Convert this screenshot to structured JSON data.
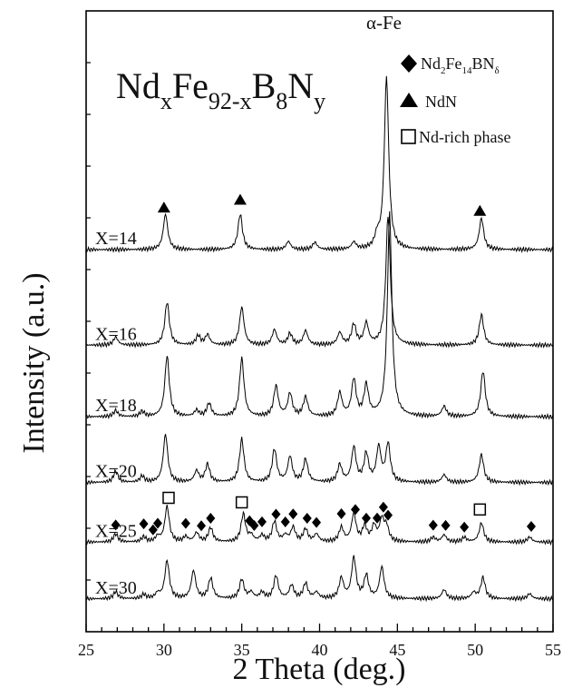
{
  "chart_data": {
    "type": "line",
    "title_parts": [
      "Nd",
      "x",
      "Fe",
      "92-x",
      "B",
      "8",
      "N",
      "y"
    ],
    "xlabel": "2 Theta (deg.)",
    "ylabel": "Intensity (a.u.)",
    "xlim": [
      25,
      55
    ],
    "x_ticks": [
      25,
      30,
      35,
      40,
      45,
      50,
      55
    ],
    "grid": false,
    "legend_position": "top-right",
    "legend": {
      "diamond": {
        "base": "Nd",
        "sub1": "2",
        "mid": "Fe",
        "sub2": "14",
        "end": "BN",
        "sub3": "δ"
      },
      "triangle": "NdN",
      "square": "Nd-rich phase"
    },
    "peak_label_afe": "α-Fe",
    "series": [
      {
        "name": "X=14",
        "baseline": 0.6,
        "peaks": [
          [
            30.1,
            0.7
          ],
          [
            34.9,
            0.7
          ],
          [
            38.0,
            0.16
          ],
          [
            39.7,
            0.14
          ],
          [
            42.2,
            0.14
          ],
          [
            43.7,
            0.22
          ],
          [
            44.3,
            3.4
          ],
          [
            50.4,
            0.62
          ]
        ]
      },
      {
        "name": "X=16",
        "baseline": 0.44,
        "peaks": [
          [
            26.9,
            0.16
          ],
          [
            30.2,
            0.85
          ],
          [
            32.2,
            0.18
          ],
          [
            32.8,
            0.2
          ],
          [
            35.0,
            0.75
          ],
          [
            37.1,
            0.3
          ],
          [
            38.1,
            0.22
          ],
          [
            39.1,
            0.28
          ],
          [
            41.3,
            0.24
          ],
          [
            42.2,
            0.4
          ],
          [
            43.0,
            0.42
          ],
          [
            44.4,
            2.55
          ],
          [
            50.4,
            0.6
          ]
        ]
      },
      {
        "name": "X=18",
        "baseline": 0.32,
        "peaks": [
          [
            26.9,
            0.12
          ],
          [
            28.6,
            0.1
          ],
          [
            30.2,
            1.2
          ],
          [
            32.1,
            0.12
          ],
          [
            32.9,
            0.26
          ],
          [
            35.0,
            1.15
          ],
          [
            37.2,
            0.6
          ],
          [
            38.1,
            0.45
          ],
          [
            39.1,
            0.38
          ],
          [
            41.3,
            0.46
          ],
          [
            42.2,
            0.72
          ],
          [
            43.0,
            0.6
          ],
          [
            44.5,
            4.0
          ],
          [
            48.0,
            0.2
          ],
          [
            50.5,
            0.9
          ]
        ]
      },
      {
        "name": "X=20",
        "baseline": 0.21,
        "peaks": [
          [
            26.9,
            0.22
          ],
          [
            28.6,
            0.12
          ],
          [
            30.1,
            0.95
          ],
          [
            32.1,
            0.22
          ],
          [
            32.8,
            0.35
          ],
          [
            35.0,
            0.85
          ],
          [
            37.1,
            0.65
          ],
          [
            38.1,
            0.5
          ],
          [
            39.1,
            0.45
          ],
          [
            41.3,
            0.34
          ],
          [
            42.2,
            0.68
          ],
          [
            43.0,
            0.55
          ],
          [
            43.8,
            0.68
          ],
          [
            44.4,
            0.75
          ],
          [
            48.0,
            0.15
          ],
          [
            50.4,
            0.55
          ]
        ]
      },
      {
        "name": "X=25",
        "baseline": 0.11,
        "peaks": [
          [
            26.9,
            0.16
          ],
          [
            28.7,
            0.1
          ],
          [
            29.6,
            0.1
          ],
          [
            30.2,
            0.7
          ],
          [
            31.4,
            0.1
          ],
          [
            32.1,
            0.18
          ],
          [
            33.0,
            0.28
          ],
          [
            35.1,
            0.55
          ],
          [
            35.6,
            0.12
          ],
          [
            36.3,
            0.12
          ],
          [
            37.1,
            0.4
          ],
          [
            37.8,
            0.12
          ],
          [
            38.3,
            0.28
          ],
          [
            39.1,
            0.25
          ],
          [
            39.8,
            0.15
          ],
          [
            41.4,
            0.28
          ],
          [
            42.2,
            0.55
          ],
          [
            42.9,
            0.3
          ],
          [
            43.5,
            0.3
          ],
          [
            44.0,
            0.42
          ],
          [
            44.3,
            0.28
          ],
          [
            47.3,
            0.09
          ],
          [
            48.0,
            0.14
          ],
          [
            49.3,
            0.09
          ],
          [
            50.4,
            0.38
          ],
          [
            53.5,
            0.1
          ]
        ]
      },
      {
        "name": "X=30",
        "baseline": 0.015,
        "peaks": [
          [
            26.9,
            0.14
          ],
          [
            28.7,
            0.08
          ],
          [
            29.6,
            0.1
          ],
          [
            30.2,
            0.75
          ],
          [
            31.9,
            0.55
          ],
          [
            33.0,
            0.4
          ],
          [
            35.0,
            0.38
          ],
          [
            35.6,
            0.12
          ],
          [
            36.3,
            0.12
          ],
          [
            37.2,
            0.45
          ],
          [
            38.2,
            0.26
          ],
          [
            39.1,
            0.3
          ],
          [
            39.8,
            0.12
          ],
          [
            41.4,
            0.4
          ],
          [
            42.2,
            0.8
          ],
          [
            43.0,
            0.45
          ],
          [
            44.0,
            0.62
          ],
          [
            48.0,
            0.18
          ],
          [
            49.9,
            0.12
          ],
          [
            50.5,
            0.42
          ],
          [
            53.5,
            0.1
          ]
        ]
      }
    ],
    "markers": {
      "triangles": [
        30.0,
        34.9,
        50.3
      ],
      "squares": [
        30.3,
        35.0,
        50.3
      ],
      "diamonds": [
        26.9,
        28.7,
        29.3,
        29.6,
        31.4,
        32.4,
        33.0,
        35.5,
        35.8,
        36.3,
        37.2,
        37.8,
        38.3,
        39.2,
        39.8,
        41.4,
        42.3,
        43.0,
        43.7,
        44.1,
        44.4,
        47.3,
        48.1,
        49.3,
        53.6
      ]
    }
  }
}
